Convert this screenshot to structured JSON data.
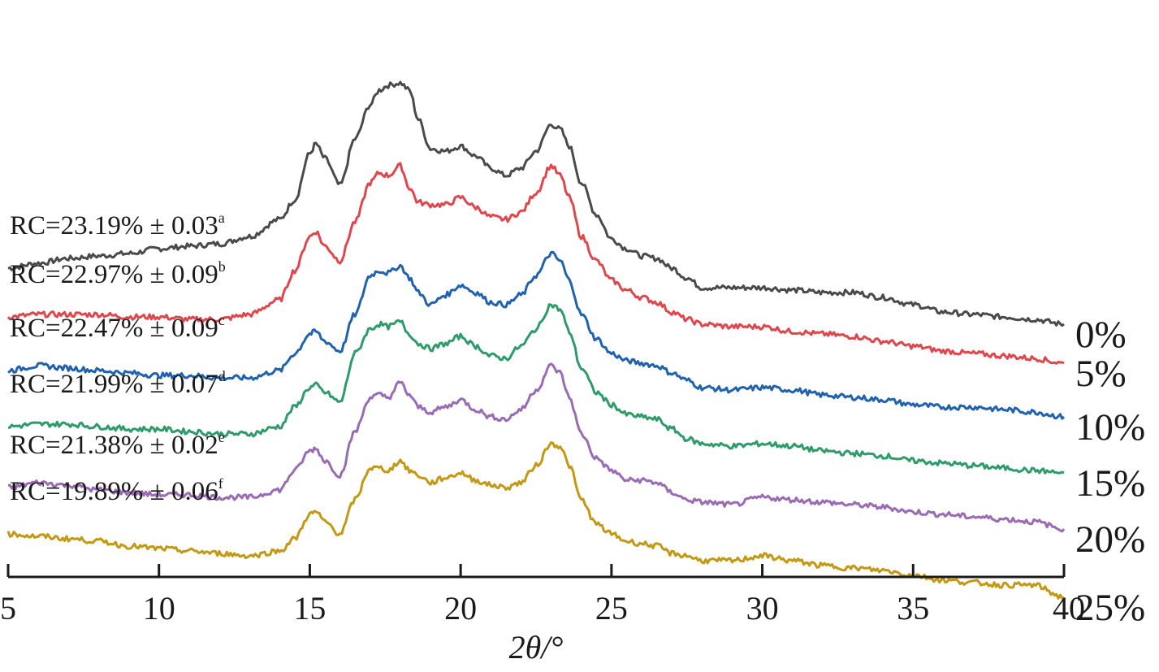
{
  "chart_data": {
    "type": "line",
    "title": "",
    "xlabel": "2θ/°",
    "ylabel": "",
    "xlim": [
      5,
      40
    ],
    "x_ticks": [
      5,
      10,
      15,
      20,
      25,
      30,
      35,
      40
    ],
    "x_tick_labels": [
      "5",
      "10",
      "15",
      "20",
      "25",
      "30",
      "35",
      "40"
    ],
    "y_axis_visible": false,
    "grid": false,
    "legend": "none",
    "stacked_offset": true,
    "series": [
      {
        "name": "0%",
        "color": "#4a4a4a",
        "annotation": {
          "text": "RC=23.19% ± 0.03",
          "superscript": "a"
        },
        "x": [
          5,
          6,
          7,
          8,
          9,
          10,
          11,
          12,
          13,
          14,
          14.5,
          15,
          15.2,
          15.5,
          16,
          16.5,
          17,
          17.3,
          17.6,
          18,
          18.3,
          18.6,
          19,
          19.5,
          20,
          20.5,
          21,
          21.5,
          22,
          22.5,
          23,
          23.3,
          23.6,
          24,
          24.5,
          25,
          25.5,
          26,
          26.5,
          27,
          27.5,
          28,
          29,
          30,
          31,
          32,
          33,
          34,
          35,
          36,
          37,
          38,
          39,
          40
        ],
        "y": [
          0.35,
          0.37,
          0.39,
          0.4,
          0.41,
          0.43,
          0.44,
          0.45,
          0.48,
          0.55,
          0.63,
          0.82,
          0.86,
          0.8,
          0.69,
          0.88,
          1.02,
          1.08,
          1.1,
          1.11,
          1.08,
          0.96,
          0.84,
          0.83,
          0.85,
          0.81,
          0.76,
          0.73,
          0.76,
          0.83,
          0.94,
          0.92,
          0.85,
          0.7,
          0.57,
          0.47,
          0.43,
          0.4,
          0.39,
          0.35,
          0.31,
          0.27,
          0.27,
          0.27,
          0.26,
          0.25,
          0.25,
          0.23,
          0.2,
          0.17,
          0.16,
          0.15,
          0.14,
          0.12
        ]
      },
      {
        "name": "5%",
        "color": "#e0474c",
        "annotation": {
          "text": "RC=22.97% ± 0.09",
          "superscript": "b"
        },
        "x": [
          5,
          6,
          7,
          8,
          9,
          10,
          11,
          12,
          13,
          14,
          14.5,
          15,
          15.2,
          15.5,
          16,
          16.5,
          17,
          17.3,
          17.6,
          18,
          18.3,
          18.6,
          19,
          19.5,
          20,
          20.5,
          21,
          21.5,
          22,
          22.5,
          23,
          23.3,
          23.6,
          24,
          24.5,
          25,
          25.5,
          26,
          26.5,
          27,
          27.5,
          28,
          29,
          30,
          31,
          32,
          33,
          34,
          35,
          36,
          37,
          38,
          39,
          40
        ],
        "y": [
          0.15,
          0.16,
          0.16,
          0.16,
          0.15,
          0.15,
          0.14,
          0.14,
          0.16,
          0.22,
          0.34,
          0.48,
          0.5,
          0.44,
          0.38,
          0.54,
          0.7,
          0.74,
          0.73,
          0.77,
          0.68,
          0.62,
          0.61,
          0.61,
          0.64,
          0.6,
          0.56,
          0.55,
          0.58,
          0.66,
          0.77,
          0.73,
          0.64,
          0.48,
          0.38,
          0.3,
          0.26,
          0.23,
          0.21,
          0.17,
          0.14,
          0.12,
          0.11,
          0.11,
          0.09,
          0.08,
          0.07,
          0.05,
          0.03,
          0.01,
          0.0,
          -0.01,
          -0.02,
          -0.04
        ]
      },
      {
        "name": "10%",
        "color": "#2062b0",
        "annotation": {
          "text": "RC=22.47% ± 0.09",
          "superscript": "c"
        },
        "x": [
          5,
          6,
          7,
          8,
          9,
          10,
          11,
          12,
          13,
          14,
          14.5,
          15,
          15.2,
          15.5,
          16,
          16.5,
          17,
          17.3,
          17.6,
          18,
          18.3,
          18.6,
          19,
          19.5,
          20,
          20.5,
          21,
          21.5,
          22,
          22.5,
          23,
          23.3,
          23.6,
          24,
          24.5,
          25,
          25.5,
          26,
          26.5,
          27,
          27.5,
          28,
          29,
          30,
          31,
          32,
          33,
          34,
          35,
          36,
          37,
          38,
          39,
          40
        ],
        "y": [
          -0.07,
          -0.05,
          -0.06,
          -0.07,
          -0.08,
          -0.09,
          -0.09,
          -0.1,
          -0.1,
          -0.07,
          0.0,
          0.08,
          0.09,
          0.05,
          0.01,
          0.16,
          0.32,
          0.34,
          0.33,
          0.36,
          0.31,
          0.25,
          0.2,
          0.24,
          0.28,
          0.25,
          0.21,
          0.2,
          0.24,
          0.32,
          0.41,
          0.38,
          0.3,
          0.16,
          0.06,
          0.0,
          -0.03,
          -0.04,
          -0.05,
          -0.08,
          -0.11,
          -0.14,
          -0.15,
          -0.14,
          -0.15,
          -0.17,
          -0.18,
          -0.19,
          -0.21,
          -0.22,
          -0.22,
          -0.23,
          -0.24,
          -0.26
        ]
      },
      {
        "name": "15%",
        "color": "#2e9b6a",
        "annotation": {
          "text": "RC=21.99% ± 0.07",
          "superscript": "d"
        },
        "x": [
          5,
          6,
          7,
          8,
          9,
          10,
          11,
          12,
          13,
          14,
          14.5,
          15,
          15.2,
          15.5,
          16,
          16.5,
          17,
          17.3,
          17.6,
          18,
          18.3,
          18.6,
          19,
          19.5,
          20,
          20.5,
          21,
          21.5,
          22,
          22.5,
          23,
          23.3,
          23.6,
          24,
          24.5,
          25,
          25.5,
          26,
          26.5,
          27,
          27.5,
          28,
          29,
          30,
          31,
          32,
          33,
          34,
          35,
          36,
          37,
          38,
          39,
          40
        ],
        "y": [
          -0.3,
          -0.29,
          -0.29,
          -0.3,
          -0.31,
          -0.31,
          -0.32,
          -0.33,
          -0.33,
          -0.3,
          -0.22,
          -0.14,
          -0.13,
          -0.16,
          -0.2,
          0.0,
          0.1,
          0.12,
          0.11,
          0.13,
          0.08,
          0.04,
          0.02,
          0.04,
          0.07,
          0.03,
          -0.01,
          -0.02,
          0.03,
          0.1,
          0.2,
          0.18,
          0.09,
          -0.06,
          -0.16,
          -0.21,
          -0.25,
          -0.26,
          -0.27,
          -0.31,
          -0.35,
          -0.37,
          -0.38,
          -0.37,
          -0.38,
          -0.4,
          -0.41,
          -0.42,
          -0.44,
          -0.45,
          -0.46,
          -0.47,
          -0.48,
          -0.49
        ]
      },
      {
        "name": "20%",
        "color": "#9a6bb5",
        "annotation": {
          "text": "RC=21.38% ± 0.02",
          "superscript": "e"
        },
        "x": [
          5,
          6,
          7,
          8,
          9,
          10,
          11,
          12,
          13,
          14,
          14.5,
          15,
          15.2,
          15.5,
          16,
          16.5,
          17,
          17.3,
          17.6,
          18,
          18.3,
          18.6,
          19,
          19.5,
          20,
          20.5,
          21,
          21.5,
          22,
          22.5,
          23,
          23.3,
          23.6,
          24,
          24.5,
          25,
          25.5,
          26,
          26.5,
          27,
          27.5,
          28,
          29,
          30,
          31,
          32,
          33,
          34,
          35,
          36,
          37,
          38,
          39,
          40
        ],
        "y": [
          -0.55,
          -0.53,
          -0.54,
          -0.56,
          -0.57,
          -0.58,
          -0.58,
          -0.59,
          -0.59,
          -0.56,
          -0.48,
          -0.4,
          -0.39,
          -0.44,
          -0.5,
          -0.32,
          -0.18,
          -0.17,
          -0.18,
          -0.12,
          -0.17,
          -0.22,
          -0.24,
          -0.22,
          -0.19,
          -0.23,
          -0.26,
          -0.27,
          -0.23,
          -0.15,
          -0.05,
          -0.08,
          -0.18,
          -0.33,
          -0.43,
          -0.48,
          -0.52,
          -0.52,
          -0.53,
          -0.57,
          -0.6,
          -0.61,
          -0.62,
          -0.59,
          -0.6,
          -0.61,
          -0.62,
          -0.63,
          -0.65,
          -0.66,
          -0.67,
          -0.68,
          -0.69,
          -0.72
        ]
      },
      {
        "name": "25%",
        "color": "#c49812",
        "annotation": {
          "text": "RC=19.89% ± 0.06",
          "superscript": "f"
        },
        "x": [
          5,
          6,
          7,
          8,
          9,
          10,
          11,
          12,
          13,
          14,
          14.5,
          15,
          15.2,
          15.5,
          16,
          16.5,
          17,
          17.3,
          17.6,
          18,
          18.3,
          18.6,
          19,
          19.5,
          20,
          20.5,
          21,
          21.5,
          22,
          22.5,
          23,
          23.3,
          23.6,
          24,
          24.5,
          25,
          25.5,
          26,
          26.5,
          27,
          27.5,
          28,
          29,
          30,
          31,
          32,
          33,
          34,
          35,
          36,
          37,
          38,
          39,
          40
        ],
        "y": [
          -0.74,
          -0.75,
          -0.76,
          -0.77,
          -0.79,
          -0.8,
          -0.81,
          -0.82,
          -0.83,
          -0.81,
          -0.76,
          -0.66,
          -0.65,
          -0.69,
          -0.74,
          -0.6,
          -0.47,
          -0.47,
          -0.48,
          -0.44,
          -0.48,
          -0.5,
          -0.53,
          -0.51,
          -0.49,
          -0.52,
          -0.54,
          -0.55,
          -0.53,
          -0.46,
          -0.37,
          -0.38,
          -0.46,
          -0.6,
          -0.7,
          -0.74,
          -0.77,
          -0.78,
          -0.79,
          -0.82,
          -0.83,
          -0.85,
          -0.85,
          -0.83,
          -0.85,
          -0.87,
          -0.88,
          -0.89,
          -0.91,
          -0.93,
          -0.94,
          -0.95,
          -0.95,
          -1.0
        ]
      }
    ]
  }
}
